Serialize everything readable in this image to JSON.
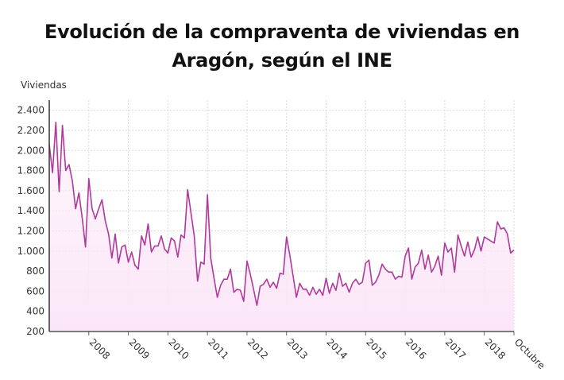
{
  "chart_data": {
    "type": "area",
    "title": "Evolución de la compraventa de viviendas en Aragón, según el INE",
    "ylabel": "Viviendas",
    "xlabel": "",
    "ylim": [
      200,
      2500
    ],
    "yticks": [
      200,
      400,
      600,
      800,
      1000,
      1200,
      1400,
      1600,
      1800,
      2000,
      2200,
      2400
    ],
    "ytick_labels": [
      "200",
      "400",
      "600",
      "800",
      "1.000",
      "1.200",
      "1.400",
      "1.600",
      "1.800",
      "2.000",
      "2.200",
      "2.400"
    ],
    "x_start": "2007-01",
    "x_end": "2018-10",
    "xticks": [
      "2008",
      "2009",
      "2010",
      "2011",
      "2012",
      "2013",
      "2014",
      "2015",
      "2016",
      "2017",
      "2018",
      "Octubre"
    ],
    "xtick_months": [
      "2008-01",
      "2009-01",
      "2010-01",
      "2011-01",
      "2012-01",
      "2013-01",
      "2014-01",
      "2015-01",
      "2016-01",
      "2017-01",
      "2018-01",
      "2018-10"
    ],
    "grid": true,
    "legend": "none",
    "series": [
      {
        "color": "#b0399c",
        "fill": "#fbe6f7",
        "values": [
          2060,
          1780,
          2280,
          1590,
          2250,
          1800,
          1860,
          1700,
          1420,
          1580,
          1330,
          1040,
          1720,
          1420,
          1320,
          1420,
          1510,
          1300,
          1170,
          930,
          1170,
          880,
          1040,
          1060,
          890,
          990,
          860,
          820,
          1150,
          1060,
          1270,
          990,
          1050,
          1050,
          1150,
          1020,
          980,
          1130,
          1100,
          940,
          1160,
          1130,
          1610,
          1380,
          1150,
          700,
          890,
          870,
          1560,
          930,
          730,
          540,
          660,
          720,
          720,
          820,
          590,
          620,
          610,
          500,
          900,
          770,
          620,
          460,
          650,
          670,
          720,
          640,
          690,
          630,
          780,
          770,
          1140,
          960,
          750,
          540,
          680,
          620,
          620,
          560,
          640,
          570,
          620,
          560,
          730,
          580,
          680,
          610,
          780,
          650,
          680,
          590,
          680,
          720,
          670,
          690,
          880,
          910,
          660,
          690,
          760,
          870,
          820,
          790,
          790,
          720,
          750,
          740,
          950,
          1030,
          720,
          840,
          880,
          1010,
          820,
          960,
          790,
          850,
          950,
          760,
          1080,
          990,
          1030,
          790,
          1160,
          1050,
          950,
          1090,
          940,
          1010,
          1140,
          1000,
          1140,
          1120,
          1100,
          1080,
          1290,
          1220,
          1230,
          1170,
          980,
          1010
        ]
      }
    ]
  }
}
